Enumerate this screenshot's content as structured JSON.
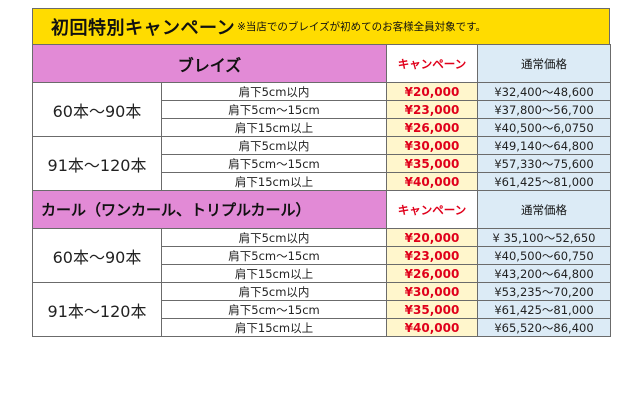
{
  "banner": {
    "title": "初回特別キャンペーン",
    "note": "※当店でのブレイズが初めてのお客様全員対象です。"
  },
  "sections": [
    {
      "name": "ブレイズ",
      "campaign_header": "キャンペーン",
      "regular_header": "通常価格",
      "groups": [
        {
          "label": "60本〜90本",
          "rows": [
            {
              "length": "肩下5cm以内",
              "campaign": "¥20,000",
              "regular": "¥32,400〜48,600"
            },
            {
              "length": "肩下5cm〜15cm",
              "campaign": "¥23,000",
              "regular": "¥37,800〜56,700"
            },
            {
              "length": "肩下15cm以上",
              "campaign": "¥26,000",
              "regular": "¥40,500〜6,0750"
            }
          ]
        },
        {
          "label": "91本〜120本",
          "rows": [
            {
              "length": "肩下5cm以内",
              "campaign": "¥30,000",
              "regular": "¥49,140〜64,800"
            },
            {
              "length": "肩下5cm〜15cm",
              "campaign": "¥35,000",
              "regular": "¥57,330〜75,600"
            },
            {
              "length": "肩下15cm以上",
              "campaign": "¥40,000",
              "regular": "¥61,425〜81,000"
            }
          ]
        }
      ]
    },
    {
      "name": "カール（ワンカール、トリプルカール）",
      "campaign_header": "キャンペーン",
      "regular_header": "通常価格",
      "groups": [
        {
          "label": "60本〜90本",
          "rows": [
            {
              "length": "肩下5cm以内",
              "campaign": "¥20,000",
              "regular": "¥ 35,100〜52,650"
            },
            {
              "length": "肩下5cm〜15cm",
              "campaign": "¥23,000",
              "regular": "¥40,500〜60,750"
            },
            {
              "length": "肩下15cm以上",
              "campaign": "¥26,000",
              "regular": "¥43,200〜64,800"
            }
          ]
        },
        {
          "label": "91本〜120本",
          "rows": [
            {
              "length": "肩下5cm以内",
              "campaign": "¥30,000",
              "regular": "¥53,235〜70,200"
            },
            {
              "length": "肩下5cm〜15cm",
              "campaign": "¥35,000",
              "regular": "¥61,425〜81,000"
            },
            {
              "length": "肩下15cm以上",
              "campaign": "¥40,000",
              "regular": "¥65,520〜86,400"
            }
          ]
        }
      ]
    }
  ]
}
